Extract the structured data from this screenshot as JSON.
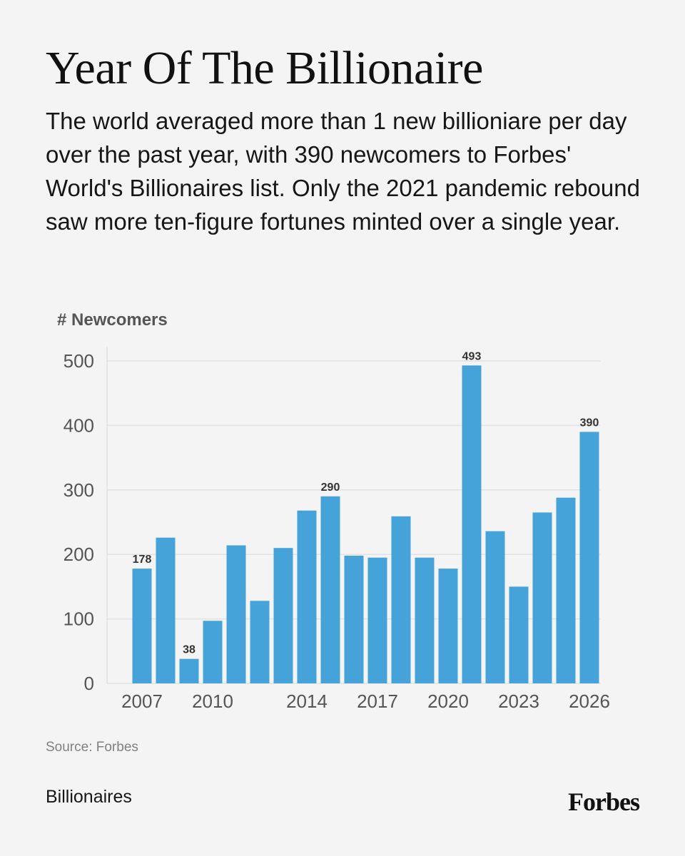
{
  "title": "Year Of The Billionaire",
  "subtitle": "The world averaged more than 1 new billioniare per day over the past year, with 390 newcomers to Forbes' World's Billionaires list. Only the 2021 pandemic rebound saw more ten-figure fortunes minted over a single year.",
  "source": "Source: Forbes",
  "section": "Billionaires",
  "logo": "Forbes",
  "colors": {
    "bar": "#45a3d9",
    "grid": "#e2e2e2",
    "axis_text": "#555555",
    "label_text": "#333333"
  },
  "chart_data": {
    "type": "bar",
    "ylabel": "# Newcomers",
    "ylim": [
      0,
      500
    ],
    "yticks": [
      0,
      100,
      200,
      300,
      400,
      500
    ],
    "xticks": [
      2007,
      2010,
      2014,
      2017,
      2020,
      2023,
      2026
    ],
    "grid": true,
    "categories": [
      2007,
      2008,
      2009,
      2010,
      2011,
      2012,
      2013,
      2014,
      2015,
      2016,
      2017,
      2018,
      2019,
      2020,
      2021,
      2022,
      2023,
      2024,
      2025,
      2026
    ],
    "values": [
      178,
      226,
      38,
      97,
      214,
      128,
      210,
      268,
      290,
      198,
      195,
      259,
      195,
      178,
      493,
      236,
      150,
      265,
      288,
      390
    ],
    "labeled_bars": [
      2007,
      2009,
      2015,
      2021,
      2026
    ]
  }
}
